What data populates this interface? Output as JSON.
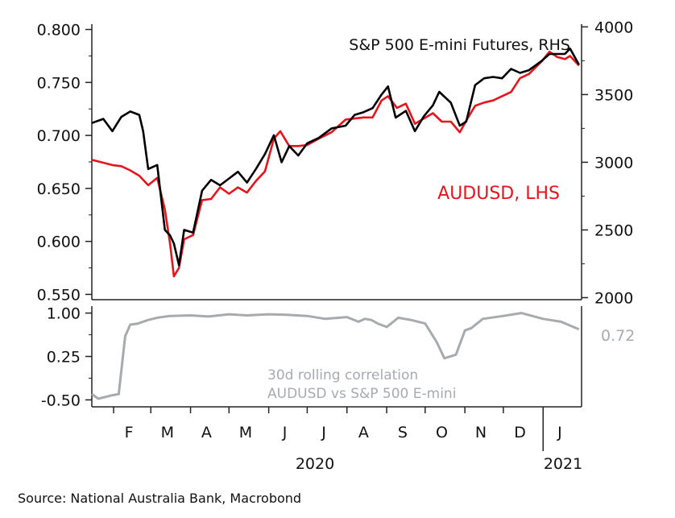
{
  "chart_data": [
    {
      "type": "line",
      "y_left": {
        "ticks": [
          "0.800",
          "0.750",
          "0.700",
          "0.650",
          "0.600",
          "0.550"
        ],
        "range": [
          0.545,
          0.805
        ]
      },
      "y_right": {
        "ticks": [
          "4000",
          "3500",
          "3000",
          "2500",
          "2000"
        ],
        "range": [
          1985,
          4020
        ]
      },
      "annotations": {
        "rhs_label": "S&P 500 E-mini Futures, RHS",
        "lhs_label": "AUDUSD, LHS"
      },
      "series": [
        {
          "name": "AUDUSD, LHS",
          "axis": "left",
          "color": "#e8141b",
          "x": [
            "2020-01-15",
            "2020-01-31",
            "2020-02-07",
            "2020-02-14",
            "2020-02-21",
            "2020-02-28",
            "2020-03-06",
            "2020-03-12",
            "2020-03-16",
            "2020-03-19",
            "2020-03-23",
            "2020-03-27",
            "2020-04-03",
            "2020-04-10",
            "2020-04-17",
            "2020-04-24",
            "2020-05-01",
            "2020-05-08",
            "2020-05-15",
            "2020-05-22",
            "2020-05-29",
            "2020-06-05",
            "2020-06-10",
            "2020-06-17",
            "2020-06-24",
            "2020-07-01",
            "2020-07-10",
            "2020-07-20",
            "2020-07-31",
            "2020-08-07",
            "2020-08-14",
            "2020-08-21",
            "2020-08-28",
            "2020-09-02",
            "2020-09-09",
            "2020-09-16",
            "2020-09-23",
            "2020-09-30",
            "2020-10-07",
            "2020-10-14",
            "2020-10-21",
            "2020-10-28",
            "2020-11-02",
            "2020-11-09",
            "2020-11-16",
            "2020-11-23",
            "2020-11-30",
            "2020-12-07",
            "2020-12-14",
            "2020-12-21",
            "2020-12-31",
            "2021-01-06",
            "2021-01-12",
            "2021-01-18",
            "2021-01-22",
            "2021-01-29"
          ],
          "values": [
            0.677,
            0.672,
            0.671,
            0.667,
            0.662,
            0.653,
            0.66,
            0.63,
            0.598,
            0.567,
            0.575,
            0.602,
            0.606,
            0.639,
            0.64,
            0.651,
            0.645,
            0.651,
            0.646,
            0.657,
            0.666,
            0.697,
            0.704,
            0.69,
            0.69,
            0.691,
            0.697,
            0.703,
            0.715,
            0.716,
            0.717,
            0.717,
            0.733,
            0.737,
            0.726,
            0.73,
            0.711,
            0.716,
            0.721,
            0.713,
            0.713,
            0.703,
            0.714,
            0.728,
            0.731,
            0.733,
            0.737,
            0.741,
            0.754,
            0.758,
            0.77,
            0.779,
            0.774,
            0.772,
            0.775,
            0.766
          ]
        },
        {
          "name": "S&P 500 E-mini Futures, RHS",
          "axis": "right",
          "color": "#000000",
          "x": [
            "2020-01-15",
            "2020-01-24",
            "2020-01-31",
            "2020-02-07",
            "2020-02-14",
            "2020-02-21",
            "2020-02-24",
            "2020-02-28",
            "2020-03-06",
            "2020-03-12",
            "2020-03-16",
            "2020-03-19",
            "2020-03-23",
            "2020-03-27",
            "2020-04-03",
            "2020-04-10",
            "2020-04-17",
            "2020-04-24",
            "2020-05-01",
            "2020-05-08",
            "2020-05-15",
            "2020-05-22",
            "2020-05-29",
            "2020-06-05",
            "2020-06-11",
            "2020-06-17",
            "2020-06-24",
            "2020-07-01",
            "2020-07-10",
            "2020-07-20",
            "2020-07-31",
            "2020-08-07",
            "2020-08-14",
            "2020-08-21",
            "2020-08-28",
            "2020-09-02",
            "2020-09-08",
            "2020-09-16",
            "2020-09-23",
            "2020-09-30",
            "2020-10-07",
            "2020-10-12",
            "2020-10-21",
            "2020-10-28",
            "2020-11-02",
            "2020-11-09",
            "2020-11-16",
            "2020-11-23",
            "2020-11-30",
            "2020-12-07",
            "2020-12-14",
            "2020-12-21",
            "2020-12-31",
            "2021-01-06",
            "2021-01-12",
            "2021-01-18",
            "2021-01-22",
            "2021-01-29"
          ],
          "values": [
            3290,
            3320,
            3230,
            3335,
            3375,
            3350,
            3230,
            2950,
            2980,
            2500,
            2460,
            2400,
            2240,
            2500,
            2480,
            2790,
            2870,
            2830,
            2880,
            2930,
            2850,
            2950,
            3060,
            3200,
            3000,
            3120,
            3050,
            3140,
            3180,
            3250,
            3270,
            3350,
            3370,
            3400,
            3500,
            3560,
            3330,
            3380,
            3230,
            3340,
            3420,
            3520,
            3440,
            3270,
            3300,
            3570,
            3620,
            3630,
            3620,
            3690,
            3660,
            3680,
            3750,
            3800,
            3800,
            3800,
            3840,
            3720
          ]
        }
      ]
    },
    {
      "type": "line",
      "y_left": {
        "ticks": [
          "1.00",
          "0.25",
          "-0.50"
        ],
        "range": [
          -0.62,
          1.12
        ]
      },
      "annotations": {
        "caption_line1": "30d rolling correlation",
        "caption_line2": "AUDUSD vs S&P 500 E-mini",
        "last_value": "0.72"
      },
      "series": [
        {
          "name": "30d rolling correlation",
          "color": "#a6abb0",
          "x": [
            "2020-01-15",
            "2020-01-20",
            "2020-01-31",
            "2020-02-05",
            "2020-02-10",
            "2020-02-14",
            "2020-02-20",
            "2020-02-28",
            "2020-03-06",
            "2020-03-16",
            "2020-04-01",
            "2020-04-15",
            "2020-05-01",
            "2020-05-15",
            "2020-06-01",
            "2020-06-15",
            "2020-07-01",
            "2020-07-15",
            "2020-08-01",
            "2020-08-10",
            "2020-08-15",
            "2020-08-20",
            "2020-08-25",
            "2020-09-01",
            "2020-09-10",
            "2020-09-20",
            "2020-10-01",
            "2020-10-10",
            "2020-10-16",
            "2020-10-25",
            "2020-11-01",
            "2020-11-06",
            "2020-11-15",
            "2020-12-01",
            "2020-12-15",
            "2021-01-01",
            "2021-01-15",
            "2021-01-29"
          ],
          "values": [
            -0.4,
            -0.48,
            -0.42,
            -0.4,
            0.6,
            0.8,
            0.82,
            0.88,
            0.92,
            0.95,
            0.96,
            0.94,
            0.98,
            0.96,
            0.98,
            0.97,
            0.95,
            0.9,
            0.93,
            0.85,
            0.9,
            0.88,
            0.82,
            0.76,
            0.92,
            0.88,
            0.82,
            0.5,
            0.22,
            0.28,
            0.7,
            0.74,
            0.9,
            0.95,
            1.0,
            0.9,
            0.85,
            0.72
          ]
        }
      ]
    }
  ],
  "x_axis": {
    "months": [
      "F",
      "M",
      "A",
      "M",
      "J",
      "J",
      "A",
      "S",
      "O",
      "N",
      "D",
      "J"
    ],
    "year_labels": [
      "2020",
      "2021"
    ]
  },
  "source": "Source: National Australia Bank, Macrobond"
}
